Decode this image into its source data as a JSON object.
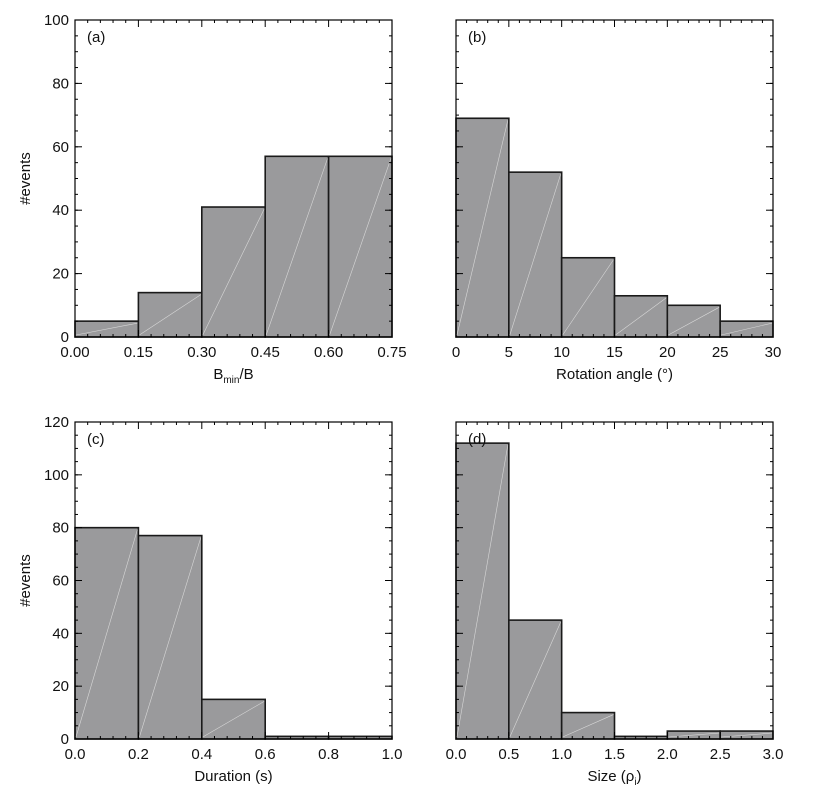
{
  "chart_data": [
    {
      "type": "bar",
      "panel_label": "(a)",
      "xlabel": "B_min/B",
      "xlabel_main": "B",
      "xlabel_sub": "min",
      "xlabel_tail": "/B",
      "ylabel": "#events",
      "bins": [
        [
          0.0,
          0.15
        ],
        [
          0.15,
          0.3
        ],
        [
          0.3,
          0.45
        ],
        [
          0.45,
          0.6
        ],
        [
          0.6,
          0.75
        ]
      ],
      "values": [
        5,
        14,
        41,
        57,
        57
      ],
      "xlim": [
        0,
        0.75
      ],
      "ylim": [
        0,
        100
      ],
      "xticks": [
        "0.00",
        "0.15",
        "0.30",
        "0.45",
        "0.60",
        "0.75"
      ],
      "yticks": [
        "0",
        "20",
        "40",
        "60",
        "80",
        "100"
      ]
    },
    {
      "type": "bar",
      "panel_label": "(b)",
      "xlabel": "Rotation angle (°)",
      "ylabel": "",
      "bins": [
        [
          0,
          5
        ],
        [
          5,
          10
        ],
        [
          10,
          15
        ],
        [
          15,
          20
        ],
        [
          20,
          25
        ],
        [
          25,
          30
        ]
      ],
      "values": [
        69,
        52,
        25,
        13,
        10,
        5
      ],
      "xlim": [
        0,
        30
      ],
      "ylim": [
        0,
        100
      ],
      "xticks": [
        "0",
        "5",
        "10",
        "15",
        "20",
        "25",
        "30"
      ],
      "yticks": []
    },
    {
      "type": "bar",
      "panel_label": "(c)",
      "xlabel": "Duration (s)",
      "ylabel": "#events",
      "bins": [
        [
          0.0,
          0.2
        ],
        [
          0.2,
          0.4
        ],
        [
          0.4,
          0.6
        ],
        [
          0.6,
          0.8
        ],
        [
          0.8,
          1.0
        ]
      ],
      "values": [
        80,
        77,
        15,
        1,
        1
      ],
      "xlim": [
        0,
        1.0
      ],
      "ylim": [
        0,
        120
      ],
      "xticks": [
        "0.0",
        "0.2",
        "0.4",
        "0.6",
        "0.8",
        "1.0"
      ],
      "yticks": [
        "0",
        "20",
        "40",
        "60",
        "80",
        "100",
        "120"
      ]
    },
    {
      "type": "bar",
      "panel_label": "(d)",
      "xlabel": "Size (ρi)",
      "xlabel_main": "Size (ρ",
      "xlabel_sub": "i",
      "xlabel_tail": ")",
      "ylabel": "",
      "bins": [
        [
          0.0,
          0.5
        ],
        [
          0.5,
          1.0
        ],
        [
          1.0,
          1.5
        ],
        [
          1.5,
          2.0
        ],
        [
          2.0,
          2.5
        ],
        [
          2.5,
          3.0
        ]
      ],
      "values": [
        112,
        45,
        10,
        1,
        3,
        3
      ],
      "xlim": [
        0,
        3.0
      ],
      "ylim": [
        0,
        120
      ],
      "xticks": [
        "0.0",
        "0.5",
        "1.0",
        "1.5",
        "2.0",
        "2.5",
        "3.0"
      ],
      "yticks": []
    }
  ]
}
